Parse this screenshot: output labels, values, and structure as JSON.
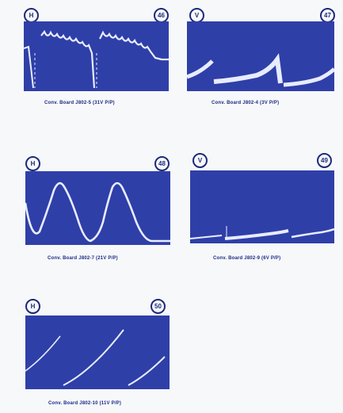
{
  "panels": [
    {
      "left_label": "H",
      "right_label": "46",
      "caption": "Conv. Board J802-5 (31V P/P)"
    },
    {
      "left_label": "V",
      "right_label": "47",
      "caption": "Conv. Board J802-4 (3V P/P)"
    },
    {
      "left_label": "H",
      "right_label": "48",
      "caption": "Conv. Board J802-7 (21V P/P)"
    },
    {
      "left_label": "V",
      "right_label": "49",
      "caption": "Conv. Board J802-9 (6V P/P)"
    },
    {
      "left_label": "H",
      "right_label": "50",
      "caption": "Conv. Board J802-10 (11V P/P)"
    }
  ],
  "colors": {
    "screen": "#2f3fa8",
    "trace": "#e8ecff",
    "ink": "#1e2b86"
  }
}
